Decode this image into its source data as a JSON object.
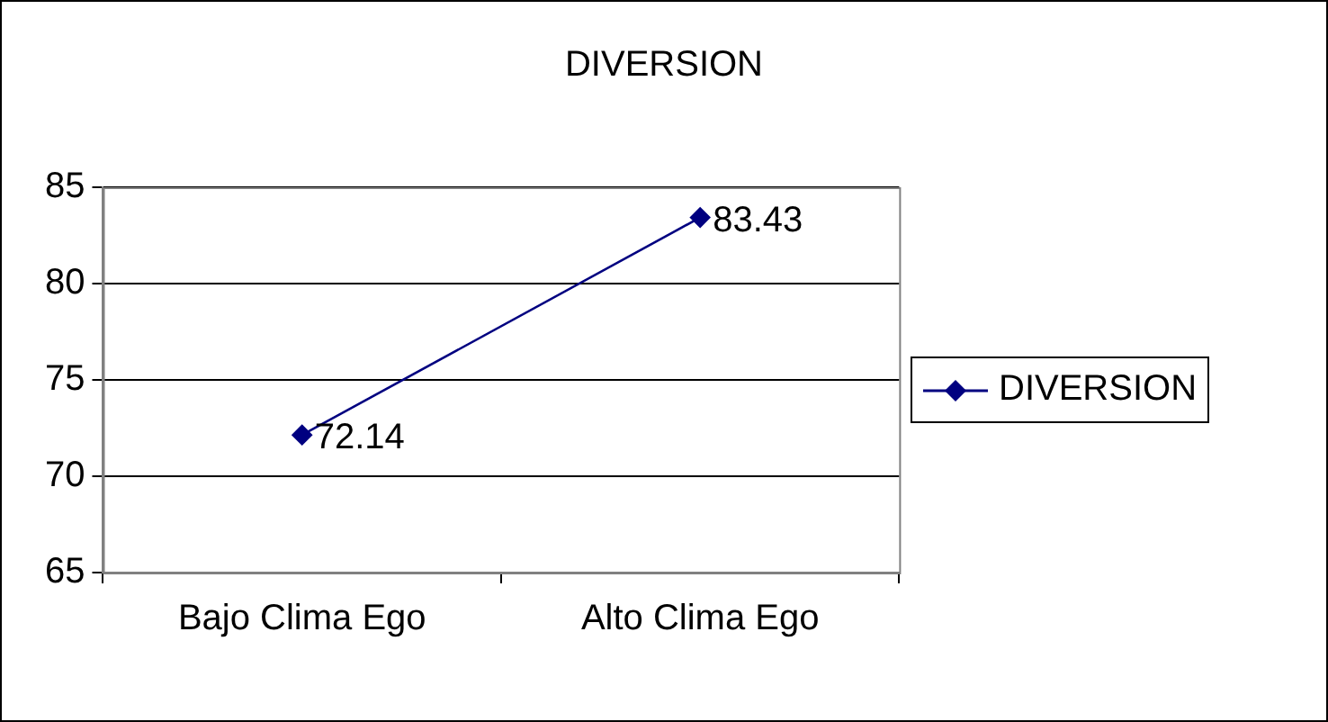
{
  "chart_data": {
    "type": "line",
    "title": "DIVERSION",
    "categories": [
      "Bajo Clima Ego",
      "Alto Clima Ego"
    ],
    "series": [
      {
        "name": "DIVERSION",
        "color": "#000080",
        "values": [
          72.14,
          83.43
        ]
      }
    ],
    "ylim": [
      65,
      85
    ],
    "yticks": [
      65,
      70,
      75,
      80,
      85
    ],
    "grid": "y",
    "legend": "right",
    "marker": "diamond",
    "line_style": "solid",
    "data_labels": true
  }
}
